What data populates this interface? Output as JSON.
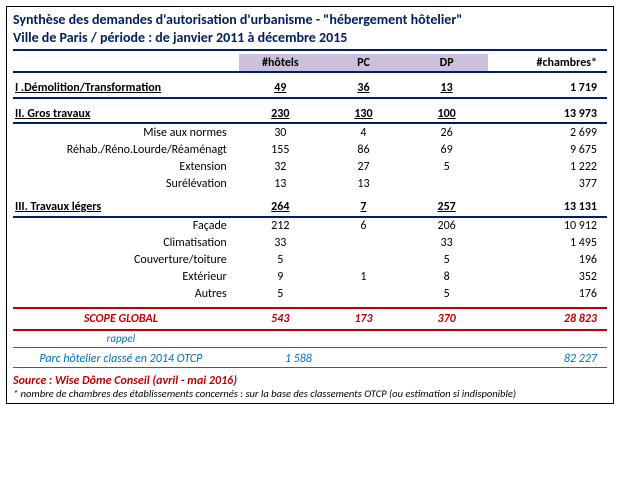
{
  "title_line1": "Synthèse des demandes d'autorisation d'urbanisme - \"hébergement hôtelier\"",
  "title_line2": "Ville de Paris / période : de janvier 2011 à décembre 2015",
  "columns": {
    "hotels": "#hôtels",
    "pc": "PC",
    "dp": "DP",
    "chambres": "#chambres*"
  },
  "section1": {
    "label": "I .Démolition/Transformation",
    "hotels": "49",
    "pc": "36",
    "dp": "13",
    "chambres": "1 719"
  },
  "section2": {
    "label": "II. Gros travaux",
    "hotels": "230",
    "pc": "130",
    "dp": "100",
    "chambres": "13 973",
    "rows": [
      {
        "label": "Mise aux normes",
        "hotels": "30",
        "pc": "4",
        "dp": "26",
        "chambres": "2 699"
      },
      {
        "label": "Réhab./Réno.Lourde/Réaménagt",
        "hotels": "155",
        "pc": "86",
        "dp": "69",
        "chambres": "9 675"
      },
      {
        "label": "Extension",
        "hotels": "32",
        "pc": "27",
        "dp": "5",
        "chambres": "1 222"
      },
      {
        "label": "Surélévation",
        "hotels": "13",
        "pc": "13",
        "dp": "",
        "chambres": "377"
      }
    ]
  },
  "section3": {
    "label": "III. Travaux légers",
    "hotels": "264",
    "pc": "7",
    "dp": "257",
    "chambres": "13 131",
    "rows": [
      {
        "label": "Façade",
        "hotels": "212",
        "pc": "6",
        "dp": "206",
        "chambres": "10 912"
      },
      {
        "label": "Climatisation",
        "hotels": "33",
        "pc": "",
        "dp": "33",
        "chambres": "1 495"
      },
      {
        "label": "Couverture/toiture",
        "hotels": "5",
        "pc": "",
        "dp": "5",
        "chambres": "196"
      },
      {
        "label": "Extérieur",
        "hotels": "9",
        "pc": "1",
        "dp": "8",
        "chambres": "352"
      },
      {
        "label": "Autres",
        "hotels": "5",
        "pc": "",
        "dp": "5",
        "chambres": "176"
      }
    ]
  },
  "scope": {
    "label": "SCOPE GLOBAL",
    "hotels": "543",
    "pc": "173",
    "dp": "370",
    "chambres": "28 823"
  },
  "rappel": {
    "heading": "rappel",
    "label": "Parc hôtelier classé en 2014 OTCP",
    "hotels": "1 588",
    "chambres": "82 227"
  },
  "footnote": {
    "source": "Source : Wise Dôme Conseil (avril - mai 2016)",
    "note": "* nombre de chambres des établissements concernés : sur la base des classements OTCP  (ou estimation si indisponible)"
  },
  "colors": {
    "dark_blue": "#002060",
    "violet": "#ccc0da",
    "red": "#c00000",
    "link_blue": "#0070c0"
  }
}
